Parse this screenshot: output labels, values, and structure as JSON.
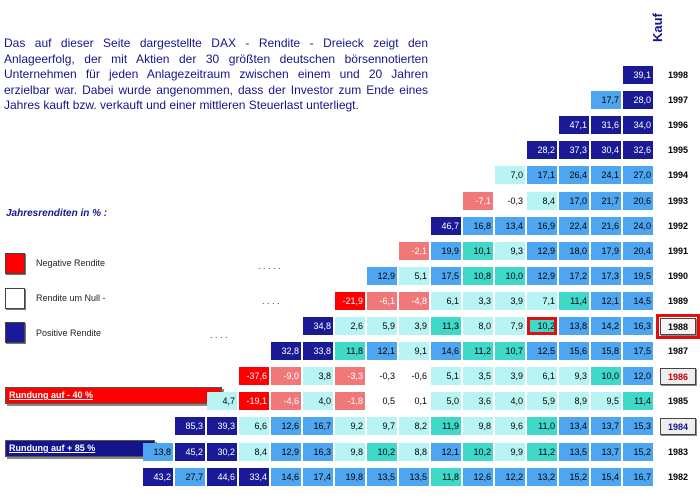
{
  "intro": "Das auf  dieser Seite  dargestellte DAX - Rendite - Dreieck  zeigt  den Anlageerfolg, der mit Aktien der 30 größten deutschen börsennotierten Unternehmen für jeden Anlagezeitraum zwischen einem und 20 Jahren erzielbar war. Dabei wurde angenommen, dass  der Investor zum Ende eines Jahres kauft  bzw. verkauft und einer  mittleren Steuerlast unterliegt.",
  "kauf_label": "Kauf",
  "section_title": "Jahresrenditen in % :",
  "legend": [
    {
      "label": "Negative Rendite",
      "color": "#ff0000"
    },
    {
      "label": "Rendite  um Null -",
      "color": "#ffffff"
    },
    {
      "label": "Positive  Rendite",
      "color": "#1a1a96"
    }
  ],
  "buttons": {
    "round40": "Rundung auf - 40 %",
    "round85": "Rundung auf + 85 %"
  },
  "dot_rows": [
    ". . . . .",
    ". . . .",
    ". . . ."
  ],
  "years": [
    "1998",
    "1997",
    "1996",
    "1995",
    "1994",
    "1993",
    "1992",
    "1991",
    "1990",
    "1989",
    "1988",
    "1987",
    "1986",
    "1985",
    "1984",
    "1983",
    "1982"
  ],
  "year_button_years": [
    "1988",
    "1986",
    "1984"
  ],
  "selected_year": "1988",
  "highlighted_cell": {
    "row": "1988",
    "col": 7
  },
  "rows": [
    {
      "year": "1998",
      "values": [
        "39,1"
      ]
    },
    {
      "year": "1997",
      "values": [
        "17,7",
        "28,0"
      ]
    },
    {
      "year": "1996",
      "values": [
        "47,1",
        "31,6",
        "34,0"
      ]
    },
    {
      "year": "1995",
      "values": [
        "28,2",
        "37,3",
        "30,4",
        "32,6"
      ]
    },
    {
      "year": "1994",
      "values": [
        "7,0",
        "17,1",
        "26,4",
        "24,1",
        "27,0"
      ]
    },
    {
      "year": "1993",
      "values": [
        "-7,1",
        "-0,3",
        "8,4",
        "17,0",
        "21,7",
        "20,6"
      ]
    },
    {
      "year": "1992",
      "values": [
        "46,7",
        "16,8",
        "13,4",
        "16,9",
        "22,4",
        "21,6",
        "24,0"
      ]
    },
    {
      "year": "1991",
      "values": [
        "-2,1",
        "19,9",
        "10,1",
        "9,3",
        "12,9",
        "18,0",
        "17,9",
        "20,4"
      ]
    },
    {
      "year": "1990",
      "values": [
        "12,9",
        "5,1",
        "17,5",
        "10,8",
        "10,0",
        "12,9",
        "17,2",
        "17,3",
        "19,5"
      ]
    },
    {
      "year": "1989",
      "values": [
        "-21,9",
        "-6,1",
        "-4,8",
        "6,1",
        "3,3",
        "3,9",
        "7,1",
        "11,4",
        "12,1",
        "14,5"
      ]
    },
    {
      "year": "1988",
      "values": [
        "34,8",
        "2,6",
        "5,9",
        "3,9",
        "11,3",
        "8,0",
        "7,9",
        "10,2",
        "13,8",
        "14,2",
        "16,3"
      ]
    },
    {
      "year": "1987",
      "values": [
        "32,8",
        "33,8",
        "11,8",
        "12,1",
        "9,1",
        "14,6",
        "11,2",
        "10,7",
        "12,5",
        "15,6",
        "15,8",
        "17,5"
      ]
    },
    {
      "year": "1986",
      "values": [
        "-37,6",
        "-9,0",
        "3,8",
        "-3,3",
        "-0,3",
        "-0,6",
        "5,1",
        "3,5",
        "3,9",
        "6,1",
        "9,3",
        "10,0",
        "12,0"
      ]
    },
    {
      "year": "1985",
      "values": [
        "4,7",
        "-19,1",
        "-4,6",
        "4,0",
        "-1,8",
        "0,5",
        "0,1",
        "5,0",
        "3,6",
        "4,0",
        "5,9",
        "8,9",
        "9,5",
        "11,4"
      ]
    },
    {
      "year": "1984",
      "values": [
        "85,3",
        "39,3",
        "6,6",
        "12,6",
        "16,7",
        "9,2",
        "9,7",
        "8,2",
        "11,9",
        "9,8",
        "9,6",
        "11,0",
        "13,4",
        "13,7",
        "15,3"
      ]
    },
    {
      "year": "1983",
      "values": [
        "13,8",
        "45,2",
        "30,2",
        "8,4",
        "12,9",
        "16,3",
        "9,8",
        "10,2",
        "8,8",
        "12,1",
        "10,2",
        "9,9",
        "11,2",
        "13,5",
        "13,7",
        "15,2"
      ]
    },
    {
      "year": "1982",
      "values": [
        "43,2",
        "27,7",
        "44,6",
        "33,4",
        "14,6",
        "17,4",
        "19,8",
        "13,5",
        "13,5",
        "11,8",
        "12,6",
        "12,2",
        "13,2",
        "15,2",
        "15,4",
        "16,7"
      ]
    }
  ]
}
